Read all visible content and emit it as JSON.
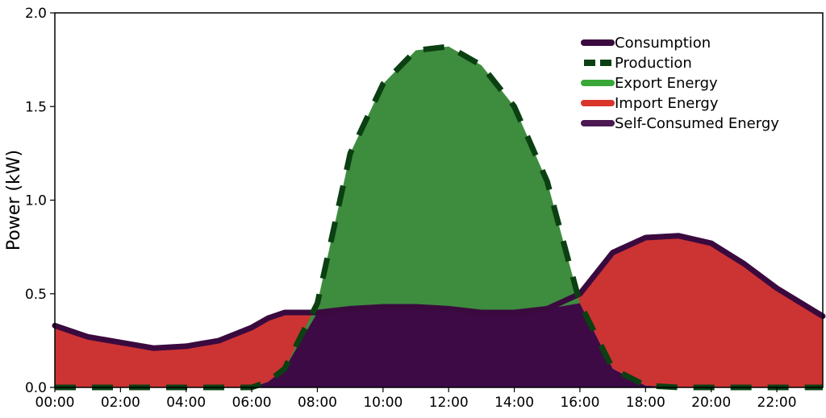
{
  "chart_data": {
    "type": "area",
    "title": "",
    "xlabel": "",
    "ylabel": "Power (kW)",
    "xlim": [
      0,
      23.4
    ],
    "ylim": [
      0,
      2.0
    ],
    "x_ticks": [
      "00:00",
      "02:00",
      "04:00",
      "06:00",
      "08:00",
      "10:00",
      "12:00",
      "14:00",
      "16:00",
      "18:00",
      "20:00",
      "22:00"
    ],
    "y_ticks": [
      "0.0",
      "0.5",
      "1.0",
      "1.5",
      "2.0"
    ],
    "grid": false,
    "legend_position": "top-right",
    "x_hours": [
      0,
      1,
      2,
      3,
      4,
      5,
      6,
      6.5,
      7,
      8,
      9,
      10,
      11,
      12,
      13,
      14,
      15,
      16,
      17,
      18,
      19,
      20,
      21,
      22,
      23.4
    ],
    "series": [
      {
        "name": "Consumption",
        "style": "line",
        "color": "#3a0a3f",
        "values": [
          0.33,
          0.27,
          0.24,
          0.21,
          0.22,
          0.25,
          0.32,
          0.37,
          0.4,
          0.4,
          0.42,
          0.43,
          0.43,
          0.42,
          0.4,
          0.4,
          0.42,
          0.5,
          0.72,
          0.8,
          0.81,
          0.77,
          0.66,
          0.53,
          0.38
        ]
      },
      {
        "name": "Production",
        "style": "dashed-line",
        "color": "#0b4012",
        "values": [
          0,
          0,
          0,
          0,
          0,
          0,
          0,
          0.03,
          0.1,
          0.45,
          1.25,
          1.62,
          1.8,
          1.82,
          1.72,
          1.5,
          1.1,
          0.45,
          0.1,
          0.01,
          0,
          0,
          0,
          0,
          0
        ]
      },
      {
        "name": "Export Energy",
        "style": "area",
        "color": "#3e8c3e"
      },
      {
        "name": "Import Energy",
        "style": "area",
        "color": "#cc3333"
      },
      {
        "name": "Self-Consumed Energy",
        "style": "area",
        "color": "#3d0a46"
      }
    ]
  },
  "colors": {
    "consumption": "#3a0a3f",
    "production": "#0b4012",
    "export": "#3e8c3e",
    "import": "#cc3333",
    "self_consumed": "#3d0a46",
    "legend_export": "#39a839",
    "legend_import": "#d9362e",
    "legend_self": "#4b1852"
  }
}
